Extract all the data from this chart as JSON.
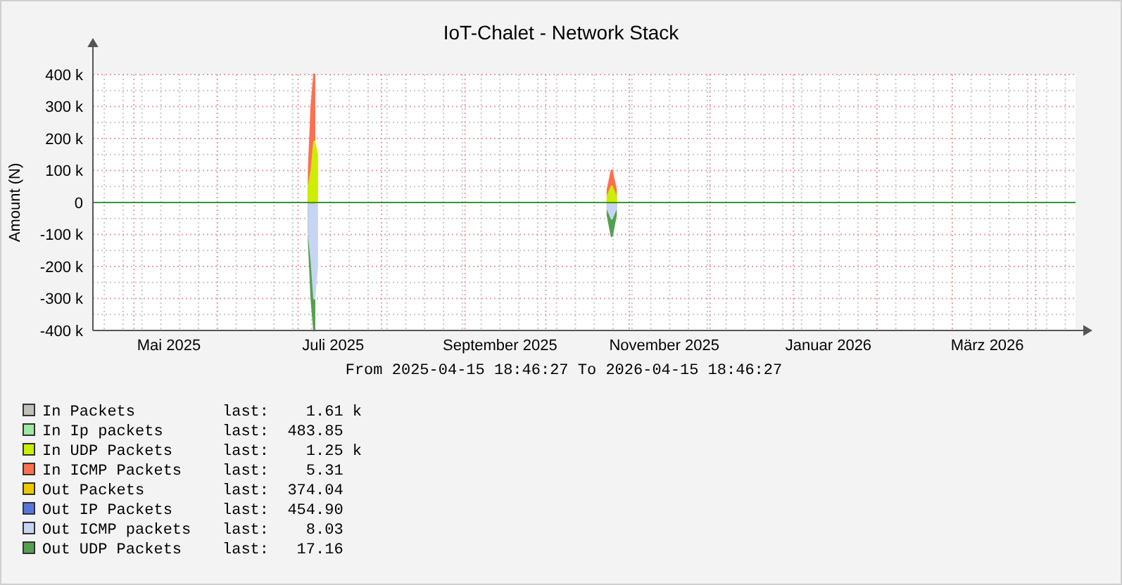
{
  "chart_data": {
    "type": "area",
    "title": "IoT-Chalet - Network Stack",
    "ylabel": "Amount (N)",
    "xlabel": "From 2025-04-15 18:46:27 To 2026-04-15 18:46:27",
    "x": [
      "2025-07-05",
      "2025-07-06",
      "2025-07-07",
      "2025-07-08",
      "2025-08-15",
      "2025-10-24",
      "2025-10-25T12:00",
      "2025-10-27"
    ],
    "series": [
      {
        "name": "In Packets",
        "color": "#c0c0b8",
        "values": [
          null,
          null,
          null,
          null,
          null,
          null,
          null,
          null
        ]
      },
      {
        "name": "In Ip packets",
        "color": "#a0e8a0",
        "values": [
          null,
          null,
          null,
          null,
          null,
          null,
          null,
          null
        ]
      },
      {
        "name": "In UDP Packets",
        "color": "#ccee00",
        "values": [
          50000,
          100000,
          190000,
          150000,
          null,
          20000,
          50000,
          20000
        ]
      },
      {
        "name": "In ICMP Packets",
        "color": "#ff7050",
        "values": [
          100000,
          300000,
          400000,
          null,
          null,
          40000,
          100000,
          40000
        ]
      },
      {
        "name": "Out Packets",
        "color": "#eec800",
        "values": [
          null,
          null,
          null,
          null,
          null,
          null,
          null,
          null
        ]
      },
      {
        "name": "Out IP Packets",
        "color": "#5577dd",
        "values": [
          null,
          null,
          null,
          null,
          null,
          null,
          null,
          null
        ]
      },
      {
        "name": "Out ICMP packets",
        "color": "#c8d4f4",
        "values": [
          -100000,
          -180000,
          -300000,
          -200000,
          null,
          -20000,
          -50000,
          -20000
        ]
      },
      {
        "name": "Out UDP Packets",
        "color": "#55a050",
        "values": [
          -120000,
          -300000,
          -400000,
          null,
          null,
          -40000,
          -105000,
          -40000
        ]
      }
    ],
    "annotations": [
      "last:    1.61 k",
      "last:  483.85",
      "last:    1.25 k",
      "last:    5.31",
      "last:  374.04",
      "last:  454.90",
      "last:    8.03",
      "last:   17.16"
    ],
    "ylim": [
      -400000,
      400000
    ],
    "yticks": [
      {
        "value": -400000,
        "label": "-400 k"
      },
      {
        "value": -300000,
        "label": "-300 k"
      },
      {
        "value": -200000,
        "label": "-200 k"
      },
      {
        "value": -100000,
        "label": "-100 k"
      },
      0,
      {
        "value": 100000,
        "label": "100 k"
      },
      {
        "value": 200000,
        "label": "200 k"
      },
      {
        "value": 300000,
        "label": "300 k"
      },
      {
        "value": 400000,
        "label": "400 k"
      }
    ],
    "xlim": [
      "2025-04-15T18:46",
      "2026-04-15T18:46"
    ],
    "xticks": [
      {
        "value": "2025-05-14",
        "label": "Mai 2025"
      },
      {
        "value": "2025-07-14",
        "label": "Juli 2025"
      },
      {
        "value": "2025-09-14",
        "label": "September 2025"
      },
      {
        "value": "2025-11-14",
        "label": "November 2025"
      },
      {
        "value": "2026-01-14",
        "label": "Januar 2026"
      },
      {
        "value": "2026-03-14",
        "label": "März 2026"
      }
    ],
    "ref_lines": [
      {
        "axis": "y",
        "value": 0,
        "color": "#339933"
      }
    ],
    "grid": true,
    "legend": "bottom"
  }
}
